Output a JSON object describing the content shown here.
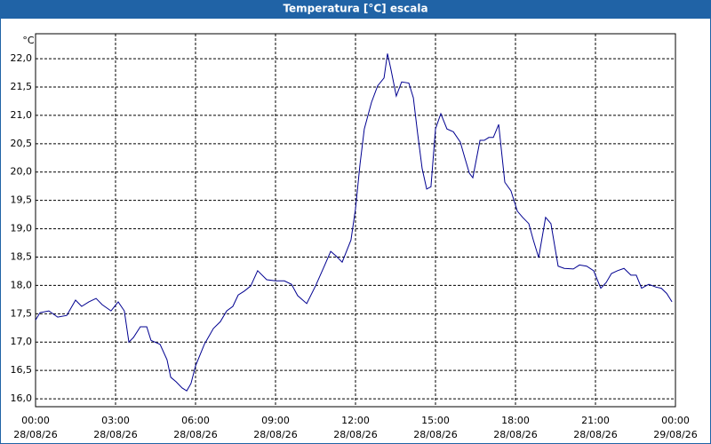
{
  "chart_data": {
    "type": "line",
    "title": "Temperatura [°C] escala",
    "y_unit": "°C",
    "xlim": [
      0,
      24
    ],
    "ylim": [
      15.86,
      22.44
    ],
    "grid": true,
    "xticks": [
      {
        "value": 0,
        "label": "00:00",
        "date": "28/08/26"
      },
      {
        "value": 3,
        "label": "03:00",
        "date": "28/08/26"
      },
      {
        "value": 6,
        "label": "06:00",
        "date": "28/08/26"
      },
      {
        "value": 9,
        "label": "09:00",
        "date": "28/08/26"
      },
      {
        "value": 12,
        "label": "12:00",
        "date": "28/08/26"
      },
      {
        "value": 15,
        "label": "15:00",
        "date": "28/08/26"
      },
      {
        "value": 18,
        "label": "18:00",
        "date": "28/08/26"
      },
      {
        "value": 21,
        "label": "21:00",
        "date": "28/08/26"
      },
      {
        "value": 24,
        "label": "00:00",
        "date": "29/08/26"
      }
    ],
    "yticks": [
      {
        "value": 16,
        "label": "16,0"
      },
      {
        "value": 16.5,
        "label": "16,5"
      },
      {
        "value": 17,
        "label": "17,0"
      },
      {
        "value": 17.5,
        "label": "17,5"
      },
      {
        "value": 18,
        "label": "18,0"
      },
      {
        "value": 18.5,
        "label": "18,5"
      },
      {
        "value": 19,
        "label": "19,0"
      },
      {
        "value": 19.5,
        "label": "19,5"
      },
      {
        "value": 20,
        "label": "20,0"
      },
      {
        "value": 20.5,
        "label": "20,5"
      },
      {
        "value": 21,
        "label": "21,0"
      },
      {
        "value": 21.5,
        "label": "21,5"
      },
      {
        "value": 22,
        "label": "22,0"
      }
    ],
    "x": [
      0,
      0.17,
      0.5,
      0.83,
      1.17,
      1.5,
      1.73,
      2,
      2.27,
      2.5,
      2.83,
      3.1,
      3.33,
      3.5,
      3.67,
      3.93,
      4.17,
      4.33,
      4.67,
      4.93,
      5.07,
      5.27,
      5.5,
      5.67,
      5.83,
      6,
      6.33,
      6.67,
      6.93,
      7.17,
      7.4,
      7.6,
      7.83,
      8.07,
      8.33,
      8.67,
      9,
      9.33,
      9.6,
      9.83,
      10.17,
      10.5,
      10.83,
      11.07,
      11.27,
      11.5,
      11.83,
      12,
      12.17,
      12.33,
      12.6,
      12.83,
      13.07,
      13.2,
      13.33,
      13.53,
      13.73,
      14,
      14.17,
      14.33,
      14.5,
      14.67,
      14.83,
      15,
      15.2,
      15.43,
      15.67,
      15.93,
      16.1,
      16.27,
      16.4,
      16.67,
      16.83,
      17,
      17.17,
      17.37,
      17.6,
      17.83,
      18.07,
      18.27,
      18.5,
      18.67,
      18.87,
      19.13,
      19.33,
      19.6,
      19.83,
      20.17,
      20.4,
      20.67,
      20.93,
      21.2,
      21.4,
      21.6,
      21.83,
      22.07,
      22.33,
      22.53,
      22.73,
      23,
      23.27,
      23.47,
      23.67,
      23.87
    ],
    "series": [
      {
        "name": "Temperatura",
        "color": "#000090",
        "values": [
          17.39,
          17.52,
          17.55,
          17.44,
          17.47,
          17.74,
          17.63,
          17.71,
          17.77,
          17.66,
          17.55,
          17.71,
          17.55,
          17.0,
          17.08,
          17.27,
          17.27,
          17.03,
          16.96,
          16.69,
          16.38,
          16.3,
          16.19,
          16.14,
          16.27,
          16.58,
          16.96,
          17.24,
          17.36,
          17.55,
          17.63,
          17.83,
          17.9,
          17.99,
          18.26,
          18.1,
          18.08,
          18.08,
          18.02,
          17.82,
          17.68,
          17.99,
          18.34,
          18.6,
          18.52,
          18.41,
          18.8,
          19.35,
          20.14,
          20.76,
          21.23,
          21.52,
          21.66,
          22.09,
          21.81,
          21.34,
          21.59,
          21.57,
          21.31,
          20.68,
          20.06,
          19.7,
          19.74,
          20.76,
          21.03,
          20.76,
          20.71,
          20.53,
          20.25,
          19.98,
          19.9,
          20.56,
          20.56,
          20.61,
          20.61,
          20.84,
          19.82,
          19.67,
          19.31,
          19.2,
          19.09,
          18.8,
          18.49,
          19.2,
          19.09,
          18.34,
          18.3,
          18.29,
          18.36,
          18.34,
          18.26,
          17.95,
          18.05,
          18.21,
          18.26,
          18.3,
          18.18,
          18.18,
          17.95,
          18.02,
          17.97,
          17.95,
          17.86,
          17.71
        ]
      }
    ]
  }
}
